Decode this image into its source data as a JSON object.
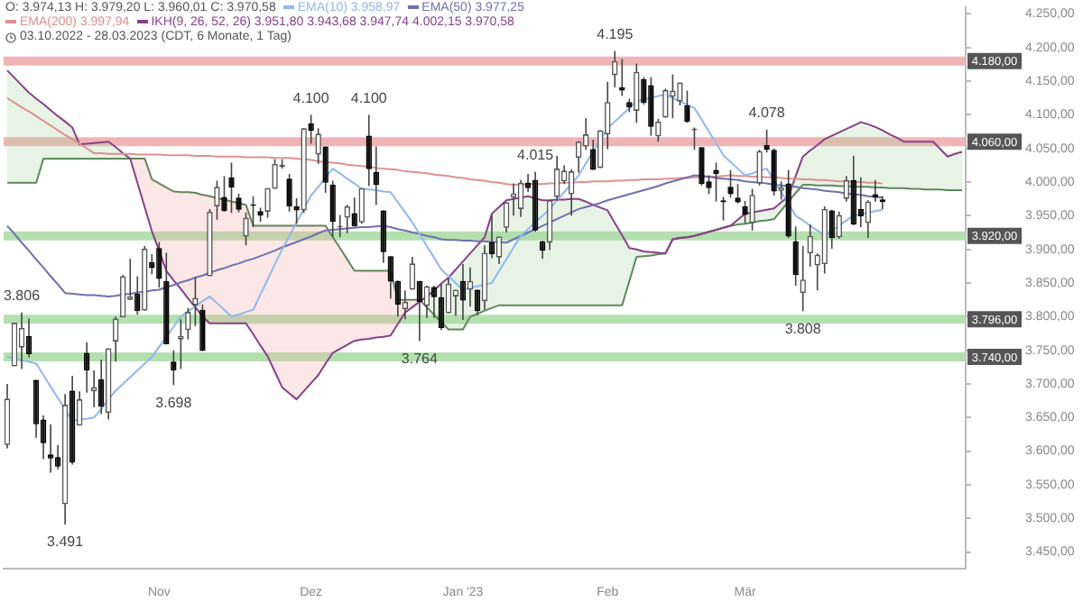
{
  "chart_data": {
    "type": "candlestick",
    "title": "O: 3.974,13 H: 3.979,20 L: 3.960,01 C: 3.970,58",
    "subtitle": "03.10.2022 - 28.03.2023 (CDT, 6 Monate, 1 Tag)",
    "legend": "top left",
    "categories": [
      null,
      null,
      null,
      null,
      null,
      null,
      null,
      null,
      null,
      null,
      null,
      null,
      null,
      null,
      null,
      null,
      null,
      null,
      null,
      null,
      null,
      "Nov",
      null,
      null,
      null,
      null,
      null,
      null,
      null,
      null,
      null,
      null,
      null,
      null,
      null,
      null,
      null,
      null,
      null,
      null,
      null,
      null,
      "Dez",
      null,
      null,
      null,
      null,
      null,
      null,
      null,
      null,
      null,
      null,
      null,
      null,
      null,
      null,
      null,
      null,
      null,
      null,
      null,
      null,
      "Jan '23",
      null,
      null,
      null,
      null,
      null,
      null,
      null,
      null,
      null,
      null,
      null,
      null,
      null,
      null,
      null,
      null,
      null,
      null,
      null,
      "Feb",
      null,
      null,
      null,
      null,
      null,
      null,
      null,
      null,
      null,
      null,
      null,
      null,
      null,
      null,
      null,
      null,
      null,
      null,
      "Mär",
      null,
      null,
      null,
      null,
      null,
      null,
      null,
      null,
      null,
      null,
      null,
      null,
      null,
      null,
      null,
      null,
      null,
      null,
      null,
      null,
      null,
      null,
      null,
      null,
      null,
      null,
      null,
      null,
      null,
      null
    ],
    "ohlc": [
      [
        3609,
        3700,
        3604,
        3678
      ],
      [
        3726,
        3791,
        3726,
        3791
      ],
      [
        3754,
        3806,
        3722,
        3783
      ],
      [
        3771,
        3797,
        3739,
        3744
      ],
      [
        3706,
        3706,
        3620,
        3640
      ],
      [
        3647,
        3653,
        3588,
        3612
      ],
      [
        3595,
        3640,
        3568,
        3589
      ],
      [
        3591,
        3609,
        3573,
        3577
      ],
      [
        3521,
        3685,
        3491,
        3669
      ],
      [
        3690,
        3712,
        3580,
        3583
      ],
      [
        3638,
        3689,
        3638,
        3677
      ],
      [
        3746,
        3762,
        3687,
        3720
      ],
      [
        3689,
        3720,
        3665,
        3695
      ],
      [
        3707,
        3736,
        3655,
        3666
      ],
      [
        3657,
        3753,
        3647,
        3753
      ],
      [
        3763,
        3800,
        3733,
        3797
      ],
      [
        3799,
        3862,
        3799,
        3860
      ],
      [
        3825,
        3886,
        3825,
        3830
      ],
      [
        3834,
        3860,
        3803,
        3808
      ],
      [
        3809,
        3905,
        3809,
        3901
      ],
      [
        3881,
        3893,
        3863,
        3872
      ],
      [
        3902,
        3911,
        3843,
        3856
      ],
      [
        3853,
        3895,
        3759,
        3759
      ],
      [
        3733,
        3750,
        3698,
        3720
      ],
      [
        3766,
        3796,
        3722,
        3771
      ],
      [
        3780,
        3813,
        3766,
        3807
      ],
      [
        3817,
        3859,
        3786,
        3828
      ],
      [
        3810,
        3818,
        3749,
        3749
      ],
      [
        3860,
        3960,
        3860,
        3956
      ],
      [
        3964,
        4002,
        3944,
        3993
      ],
      [
        3978,
        4009,
        3956,
        3957
      ],
      [
        4007,
        4029,
        3954,
        3992
      ],
      [
        3977,
        3983,
        3955,
        3959
      ],
      [
        3919,
        3955,
        3906,
        3947
      ],
      [
        3967,
        3979,
        3933,
        3965
      ],
      [
        3957,
        3962,
        3941,
        3950
      ],
      [
        3956,
        3991,
        3947,
        3991
      ],
      [
        3990,
        4034,
        3990,
        4027
      ],
      [
        4023,
        4034,
        4020,
        4026
      ],
      [
        4005,
        4012,
        3956,
        3964
      ],
      [
        3964,
        3976,
        3938,
        3958
      ],
      [
        3958,
        4080,
        3954,
        4080
      ],
      [
        4087,
        4100,
        4057,
        4076
      ],
      [
        4041,
        4080,
        4027,
        4072
      ],
      [
        4053,
        4053,
        3984,
        3999
      ],
      [
        3996,
        4002,
        3919,
        3941
      ],
      [
        3934,
        3951,
        3918,
        3933
      ],
      [
        3947,
        3966,
        3924,
        3964
      ],
      [
        3954,
        3977,
        3934,
        3934
      ],
      [
        3940,
        3991,
        3938,
        3991
      ],
      [
        4069,
        4100,
        3994,
        4019
      ],
      [
        4015,
        4053,
        3966,
        3996
      ],
      [
        3958,
        3958,
        3880,
        3896
      ],
      [
        3890,
        3890,
        3827,
        3852
      ],
      [
        3853,
        3854,
        3800,
        3818
      ],
      [
        3811,
        3839,
        3796,
        3822
      ],
      [
        3840,
        3889,
        3840,
        3879
      ],
      [
        3853,
        3853,
        3764,
        3822
      ],
      [
        3816,
        3846,
        3798,
        3845
      ],
      [
        3844,
        3846,
        3798,
        3829
      ],
      [
        3829,
        3848,
        3780,
        3783
      ],
      [
        3805,
        3858,
        3805,
        3849
      ],
      [
        3830,
        3840,
        3801,
        3840
      ],
      [
        3853,
        3878,
        3795,
        3824
      ],
      [
        3840,
        3873,
        3815,
        3853
      ],
      [
        3840,
        3840,
        3802,
        3808
      ],
      [
        3823,
        3906,
        3810,
        3895
      ],
      [
        3911,
        3951,
        3887,
        3893
      ],
      [
        3888,
        3919,
        3878,
        3919
      ],
      [
        3932,
        3970,
        3925,
        3970
      ],
      [
        3977,
        3998,
        3950,
        3983
      ],
      [
        3960,
        4003,
        3948,
        3999
      ],
      [
        3999,
        4012,
        3985,
        3991
      ],
      [
        4003,
        4015,
        3926,
        3928
      ],
      [
        3912,
        3913,
        3886,
        3898
      ],
      [
        3910,
        3973,
        3899,
        3973
      ],
      [
        3978,
        4039,
        3972,
        4020
      ],
      [
        4001,
        4025,
        3997,
        4017
      ],
      [
        3982,
        4019,
        3950,
        4016
      ],
      [
        4036,
        4061,
        4014,
        4060
      ],
      [
        4053,
        4095,
        4048,
        4071
      ],
      [
        4049,
        4063,
        4018,
        4018
      ],
      [
        4021,
        4077,
        4021,
        4077
      ],
      [
        4071,
        4149,
        4049,
        4119
      ],
      [
        4159,
        4195,
        4141,
        4180
      ],
      [
        4141,
        4183,
        4128,
        4136
      ],
      [
        4119,
        4124,
        4104,
        4111
      ],
      [
        4106,
        4176,
        4088,
        4164
      ],
      [
        4153,
        4156,
        4115,
        4118
      ],
      [
        4144,
        4156,
        4069,
        4082
      ],
      [
        4068,
        4094,
        4060,
        4090
      ],
      [
        4096,
        4139,
        4096,
        4137
      ],
      [
        4127,
        4160,
        4095,
        4136
      ],
      [
        4120,
        4148,
        4114,
        4148
      ],
      [
        4114,
        4136,
        4088,
        4090
      ],
      [
        4077,
        4081,
        4048,
        4079
      ],
      [
        4052,
        4052,
        3995,
        3997
      ],
      [
        4001,
        4010,
        3982,
        3991
      ],
      [
        4018,
        4029,
        3971,
        4012
      ],
      [
        3973,
        3978,
        3943,
        3970
      ],
      [
        3993,
        4018,
        3977,
        3982
      ],
      [
        3977,
        3997,
        3968,
        3970
      ],
      [
        3964,
        3972,
        3939,
        3951
      ],
      [
        3939,
        3990,
        3928,
        3981
      ],
      [
        3998,
        4048,
        3995,
        4046
      ],
      [
        4055,
        4078,
        4044,
        4048
      ],
      [
        4048,
        4050,
        3980,
        3986
      ],
      [
        3987,
        4001,
        3974,
        3992
      ],
      [
        3998,
        4018,
        3917,
        3919
      ],
      [
        3912,
        3934,
        3846,
        3862
      ],
      [
        3835,
        3905,
        3808,
        3855
      ],
      [
        3894,
        3937,
        3874,
        3920
      ],
      [
        3876,
        3894,
        3839,
        3892
      ],
      [
        3878,
        3964,
        3864,
        3960
      ],
      [
        3958,
        3959,
        3901,
        3917
      ],
      [
        3918,
        3956,
        3916,
        3951
      ],
      [
        3975,
        4009,
        3971,
        4003
      ],
      [
        4003,
        4039,
        3936,
        3937
      ],
      [
        3960,
        4007,
        3933,
        3949
      ],
      [
        3939,
        3973,
        3917,
        3971
      ],
      [
        3982,
        4003,
        3971,
        3977
      ],
      [
        3974.13,
        3979.2,
        3960.01,
        3970.58
      ],
      null,
      null,
      null,
      null,
      null,
      null,
      null,
      null,
      null,
      null,
      null
    ],
    "series": [
      {
        "type": "line",
        "name": "EMA(10) 3.958,97",
        "color": "#8fb8ee",
        "values": [
          3740,
          3738,
          3735,
          3733,
          3730,
          3713,
          3696,
          3679,
          3662,
          3645,
          3647,
          3648,
          3650,
          3663,
          3677,
          3690,
          3700,
          3710,
          3720,
          3730,
          3740,
          3755,
          3770,
          3785,
          3800,
          3808,
          3815,
          3823,
          3830,
          3820,
          3810,
          3800,
          3803,
          3807,
          3810,
          3833,
          3855,
          3878,
          3900,
          3920,
          3940,
          3960,
          3980,
          3993,
          4007,
          4020,
          4013,
          4005,
          3998,
          3990,
          3989,
          3988,
          3986,
          3985,
          3970,
          3955,
          3940,
          3923,
          3905,
          3888,
          3870,
          3860,
          3850,
          3840,
          3843,
          3845,
          3848,
          3850,
          3868,
          3885,
          3903,
          3920,
          3930,
          3940,
          3950,
          3960,
          3973,
          3985,
          3998,
          4010,
          4028,
          4045,
          4063,
          4080,
          4090,
          4100,
          4110,
          4120,
          4123,
          4125,
          4128,
          4130,
          4125,
          4120,
          4115,
          4110,
          4093,
          4075,
          4058,
          4040,
          4030,
          4020,
          4010,
          4013,
          4017,
          4020,
          4003,
          3985,
          3968,
          3950,
          3943,
          3935,
          3928,
          3920,
          3928,
          3935,
          3943,
          3950,
          3952,
          3955,
          3957,
          3959,
          null,
          null,
          null,
          null,
          null,
          null,
          null,
          null,
          null,
          null,
          null
        ]
      },
      {
        "type": "line",
        "name": "EMA(50) 3.977,25",
        "color": "#6f6fb0",
        "values": [
          3935,
          3923,
          3910,
          3898,
          3885,
          3873,
          3860,
          3848,
          3835,
          3834,
          3833,
          3832,
          3832,
          3831,
          3830,
          3831,
          3833,
          3834,
          3836,
          3837,
          3839,
          3840,
          3844,
          3847,
          3851,
          3854,
          3858,
          3861,
          3865,
          3869,
          3872,
          3876,
          3879,
          3883,
          3886,
          3890,
          3894,
          3898,
          3903,
          3907,
          3911,
          3915,
          3919,
          3924,
          3928,
          3929,
          3930,
          3931,
          3932,
          3933,
          3933,
          3934,
          3935,
          3933,
          3930,
          3928,
          3925,
          3923,
          3920,
          3918,
          3915,
          3914,
          3914,
          3913,
          3913,
          3912,
          3912,
          3911,
          3911,
          3910,
          3915,
          3920,
          3925,
          3930,
          3935,
          3940,
          3945,
          3950,
          3955,
          3960,
          3963,
          3966,
          3969,
          3973,
          3976,
          3979,
          3982,
          3985,
          3988,
          3991,
          3994,
          3998,
          4001,
          4004,
          4007,
          4010,
          4009,
          4008,
          4006,
          4005,
          4004,
          4003,
          4001,
          4000,
          3999,
          3998,
          3996,
          3995,
          3994,
          3993,
          3991,
          3990,
          3989,
          3987,
          3986,
          3985,
          3983,
          3982,
          3981,
          3979,
          3978,
          3977,
          null,
          null,
          null,
          null,
          null,
          null,
          null,
          null,
          null,
          null,
          null
        ]
      },
      {
        "type": "line",
        "name": "EMA(200) 3.997,94",
        "color": "#e09090",
        "values": [
          4125,
          4118,
          4111,
          4105,
          4098,
          4091,
          4084,
          4077,
          4070,
          4064,
          4057,
          4050,
          4043,
          4043,
          4042,
          4042,
          4042,
          4042,
          4041,
          4041,
          4041,
          4041,
          4040,
          4040,
          4040,
          4040,
          4039,
          4039,
          4039,
          4038,
          4038,
          4038,
          4038,
          4037,
          4037,
          4037,
          4037,
          4036,
          4036,
          4036,
          4035,
          4034,
          4033,
          4031,
          4030,
          4029,
          4028,
          4026,
          4025,
          4024,
          4023,
          4021,
          4020,
          4019,
          4018,
          4016,
          4015,
          4014,
          4013,
          4011,
          4010,
          4009,
          4007,
          4006,
          4004,
          4003,
          4002,
          4000,
          3999,
          3997,
          3996,
          3996,
          3997,
          3997,
          3997,
          3998,
          3998,
          3999,
          3999,
          4000,
          4000,
          4001,
          4001,
          4001,
          4002,
          4002,
          4003,
          4003,
          4004,
          4004,
          4004,
          4005,
          4005,
          4006,
          4006,
          4007,
          4007,
          4008,
          4008,
          4009,
          4010,
          4009,
          4009,
          4008,
          4008,
          4007,
          4007,
          4006,
          4005,
          4005,
          4004,
          4004,
          4003,
          4003,
          4002,
          4001,
          4001,
          4000,
          4000,
          3999,
          3999,
          3998,
          null,
          null,
          null,
          null,
          null,
          null,
          null,
          null,
          null,
          null,
          null
        ]
      },
      {
        "type": "line",
        "name": "IKH(9, 26, 52, 26) 3.951,80 3.943,68 3.947,74 4.002,15 3.970,58",
        "color": "#8a3f8a",
        "values": [
          4166,
          4155,
          4144,
          4133,
          4124,
          4116,
          4107,
          4098,
          4090,
          4081,
          4056,
          4057,
          4058,
          4059,
          4060,
          4052,
          4043,
          4035,
          3999,
          3963,
          3927,
          3898,
          3868,
          3854,
          3841,
          3827,
          3814,
          3800,
          3790,
          3790,
          3790,
          3790,
          3790,
          3790,
          3774,
          3757,
          3741,
          3718,
          3695,
          3686,
          3677,
          3689,
          3701,
          3713,
          3730,
          3746,
          3752,
          3758,
          3764,
          3766,
          3767,
          3769,
          3770,
          3772,
          3789,
          3806,
          3814,
          3822,
          3830,
          3839,
          3849,
          3858,
          3870,
          3882,
          3894,
          3906,
          3918,
          3953,
          3963,
          3973,
          3975,
          3977,
          3979,
          3976,
          3973,
          3973,
          3974,
          3974,
          3975,
          3975,
          3971,
          3966,
          3962,
          3958,
          3939,
          3921,
          3902,
          3900,
          3897,
          3896,
          3895,
          3894,
          3915,
          3917,
          3918,
          3920,
          3923,
          3926,
          3929,
          3932,
          3935,
          3944,
          3953,
          3955,
          3957,
          3959,
          3961,
          3970,
          3979,
          4009,
          4038,
          4047,
          4055,
          4064,
          4069,
          4074,
          4079,
          4084,
          4089,
          4086,
          4082,
          4077,
          4071,
          4066,
          4060,
          4060,
          4060,
          4060,
          4060,
          4049,
          4038,
          4042,
          4045
        ]
      },
      {
        "type": "line",
        "color": "#4f7f4f",
        "values": [
          3999,
          3999,
          3999,
          3999,
          3999,
          4035,
          4035,
          4035,
          4035,
          4035,
          4035,
          4035,
          4035,
          4035,
          4035,
          4035,
          4035,
          4035,
          4035,
          4035,
          4004,
          3998,
          3992,
          3986,
          3985,
          3985,
          3984,
          3981,
          3979,
          3976,
          3974,
          3971,
          3969,
          3966,
          3935,
          3935,
          3935,
          3935,
          3935,
          3935,
          3935,
          3935,
          3935,
          3935,
          3935,
          3918,
          3902,
          3885,
          3868,
          3868,
          3868,
          3868,
          3868,
          3868,
          3825,
          3825,
          3825,
          3825,
          3814,
          3803,
          3792,
          3781,
          3781,
          3781,
          3800,
          3804,
          3809,
          3813,
          3817,
          3817,
          3817,
          3817,
          3817,
          3817,
          3817,
          3817,
          3817,
          3817,
          3817,
          3817,
          3817,
          3817,
          3817,
          3817,
          3817,
          3817,
          3853,
          3889,
          3890,
          3891,
          3893,
          3894,
          3915,
          3917,
          3918,
          3920,
          3923,
          3926,
          3929,
          3932,
          3935,
          3937,
          3938,
          3940,
          3942,
          3943,
          3945,
          3958,
          3971,
          3984,
          3996,
          3996,
          3995,
          3995,
          3995,
          3994,
          3994,
          3993,
          3993,
          3993,
          3992,
          3992,
          3991,
          3991,
          3991,
          3990,
          3990,
          3989,
          3989,
          3989,
          3988,
          3988,
          3988
        ]
      }
    ],
    "ylim": [
      3425,
      4260
    ],
    "yticks": [
      {
        "value": 3450,
        "label": "3.450,00"
      },
      {
        "value": 3500,
        "label": "3.500,00"
      },
      {
        "value": 3550,
        "label": "3.550,00"
      },
      {
        "value": 3600,
        "label": "3.600,00"
      },
      {
        "value": 3650,
        "label": "3.650,00"
      },
      {
        "value": 3700,
        "label": "3.700,00"
      },
      {
        "value": 3750,
        "label": "3.750,00"
      },
      {
        "value": 3800,
        "label": "3.800,00"
      },
      {
        "value": 3850,
        "label": "3.850,00"
      },
      {
        "value": 3900,
        "label": "3.900,00"
      },
      {
        "value": 3950,
        "label": "3.950,00"
      },
      {
        "value": 4000,
        "label": "4.000,00"
      },
      {
        "value": 4050,
        "label": "4.050,00"
      },
      {
        "value": 4100,
        "label": "4.100,00"
      },
      {
        "value": 4150,
        "label": "4.150,00"
      },
      {
        "value": 4200,
        "label": "4.200,00"
      },
      {
        "value": 4250,
        "label": "4.250,00"
      }
    ],
    "ref_lines": [
      {
        "axis": "y",
        "value": 4180,
        "label": "4.180,00",
        "color": "#f0b4b4"
      },
      {
        "axis": "y",
        "value": 4060,
        "label": "4.060,00",
        "color": "#f0b4b4"
      },
      {
        "axis": "y",
        "value": 3920,
        "label": "3.920,00",
        "color": "#b4e0b0"
      },
      {
        "axis": "y",
        "value": 3796,
        "label": "3.796,00",
        "color": "#b4e0b0"
      },
      {
        "axis": "y",
        "value": 3740,
        "label": "3.740,00",
        "color": "#b4e0b0"
      }
    ],
    "annotations": [
      {
        "text": "3.806",
        "y": 3806
      },
      {
        "text": "3.491",
        "y": 3491
      },
      {
        "text": "3.698",
        "y": 3698
      },
      {
        "text": "4.100",
        "y": 4100
      },
      {
        "text": "4.100",
        "y": 4100
      },
      {
        "text": "3.764",
        "y": 3764
      },
      {
        "text": "4.015",
        "y": 4015
      },
      {
        "text": "4.195",
        "y": 4195
      },
      {
        "text": "4.078",
        "y": 4078
      },
      {
        "text": "3.808",
        "y": 3808
      }
    ]
  }
}
